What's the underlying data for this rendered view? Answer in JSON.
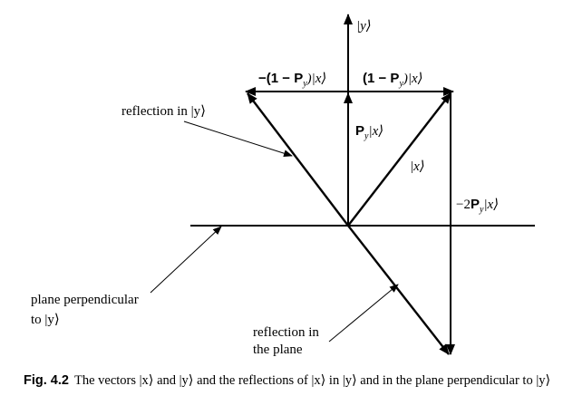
{
  "labels": {
    "y_axis": "|y⟩",
    "minus_one_minus_py_x": "−(1 − P",
    "minus_one_minus_py_x_end": ")|x⟩",
    "one_minus_py_x": "(1 − P",
    "one_minus_py_x_end": ")|x⟩",
    "p_y_symbol": "P",
    "y_subscript": "y",
    "py_x_end": "|x⟩",
    "x_vector": "|x⟩",
    "minus_two": "−2",
    "reflection_in_y": "reflection in |y⟩",
    "plane_perpendicular_line1": "plane perpendicular",
    "plane_perpendicular_line2": "to |y⟩",
    "reflection_in_plane_line1": "reflection in",
    "reflection_in_plane_line2": "the plane"
  },
  "caption": {
    "figure_number": "Fig. 4.2",
    "text": "The vectors |x⟩ and |y⟩ and the reflections of |x⟩ in |y⟩ and in the plane perpendicular to |y⟩"
  }
}
